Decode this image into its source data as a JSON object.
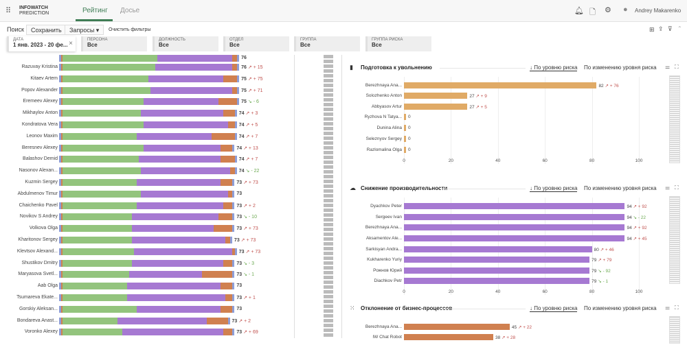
{
  "header": {
    "logo_line1": "INFOWATCH",
    "logo_line2": "PREDICTION",
    "tabs": [
      {
        "label": "Рейтинг",
        "active": true
      },
      {
        "label": "Досье",
        "active": false
      }
    ],
    "user": "Andrey Makarenko",
    "icons": [
      "apps-grid-icon",
      "bell-icon",
      "document-icon",
      "gear-icon",
      "user-avatar-icon"
    ]
  },
  "toolbar": {
    "search": "Поиск",
    "save": "Сохранить",
    "queries": "Запросы",
    "clear": "Очистить фильтры",
    "right_icons": [
      "layout-icon",
      "export-icon",
      "filter-icon",
      "collapse-icon"
    ]
  },
  "filters": [
    {
      "label": "ДАТА",
      "value": "1 янв. 2023 - 20 фе..."
    },
    {
      "label": "ПЕРСОНА",
      "value": "Все"
    },
    {
      "label": "ДОЛЖНОСТЬ",
      "value": "Все"
    },
    {
      "label": "ОТДЕЛ",
      "value": "Все"
    },
    {
      "label": "ГРУППА",
      "value": "Все"
    },
    {
      "label": "ГРУППА РИСКА",
      "value": "Все"
    }
  ],
  "colors": {
    "green": "#93c47d",
    "purple": "#a679d2",
    "orange": "#d08050",
    "tan": "#e0aa66",
    "blue": "#8e9ed8",
    "up": "#c0504d",
    "down": "#6aa84f",
    "accent": "#3f7d55"
  },
  "rating": {
    "rows": [
      {
        "name": "",
        "score": "76",
        "trend": "",
        "delta": "",
        "g": 42,
        "p": 32,
        "o": 2
      },
      {
        "name": "Razuvay Kristina",
        "score": "76",
        "trend": "up",
        "delta": "+ 15",
        "g": 41,
        "p": 33,
        "o": 2
      },
      {
        "name": "Kitaev Artem",
        "score": "75",
        "trend": "up",
        "delta": "+ 75",
        "g": 38,
        "p": 32,
        "o": 6
      },
      {
        "name": "Popov Alexander",
        "score": "75",
        "trend": "up",
        "delta": "+ 71",
        "g": 39,
        "p": 35,
        "o": 2
      },
      {
        "name": "Eremeev Alexey",
        "score": "75",
        "trend": "down",
        "delta": "- 6",
        "g": 36,
        "p": 32,
        "o": 8
      },
      {
        "name": "Mikhaylov Anton",
        "score": "74",
        "trend": "up",
        "delta": "+ 3",
        "g": 35,
        "p": 35,
        "o": 5
      },
      {
        "name": "Kondratova Vera",
        "score": "74",
        "trend": "up",
        "delta": "+ 5",
        "g": 36,
        "p": 36,
        "o": 3
      },
      {
        "name": "Leonov Maxim",
        "score": "74",
        "trend": "up",
        "delta": "+ 7",
        "g": 33,
        "p": 32,
        "o": 10
      },
      {
        "name": "Beresnev Alexey",
        "score": "74",
        "trend": "up",
        "delta": "+ 13",
        "g": 36,
        "p": 33,
        "o": 5
      },
      {
        "name": "Balashov Demid",
        "score": "74",
        "trend": "up",
        "delta": "+ 7",
        "g": 34,
        "p": 35,
        "o": 6
      },
      {
        "name": "Nasonov Alexan...",
        "score": "74",
        "trend": "down",
        "delta": "- 22",
        "g": 35,
        "p": 38,
        "o": 2
      },
      {
        "name": "Kuzmin Sergey",
        "score": "73",
        "trend": "up",
        "delta": "+ 73",
        "g": 33,
        "p": 36,
        "o": 5
      },
      {
        "name": "Abdulmenov Timur",
        "score": "73",
        "trend": "",
        "delta": "",
        "g": 35,
        "p": 37,
        "o": 2
      },
      {
        "name": "Chaichenko Pavel",
        "score": "73",
        "trend": "up",
        "delta": "+ 2",
        "g": 33,
        "p": 37,
        "o": 4
      },
      {
        "name": "Novikov S Andrey",
        "score": "73",
        "trend": "down",
        "delta": "- 10",
        "g": 31,
        "p": 37,
        "o": 6
      },
      {
        "name": "Volkova Olga",
        "score": "73",
        "trend": "up",
        "delta": "+ 73",
        "g": 31,
        "p": 35,
        "o": 8
      },
      {
        "name": "Kharitonov Sergey",
        "score": "73",
        "trend": "up",
        "delta": "+ 73",
        "g": 31,
        "p": 40,
        "o": 2
      },
      {
        "name": "Klevtsov Alexand...",
        "score": "73",
        "trend": "up",
        "delta": "+ 73",
        "g": 32,
        "p": 42,
        "o": 1
      },
      {
        "name": "Shustikov Dmitry",
        "score": "73",
        "trend": "down",
        "delta": "- 3",
        "g": 31,
        "p": 39,
        "o": 4
      },
      {
        "name": "Maryasova Svetl...",
        "score": "73",
        "trend": "down",
        "delta": "- 1",
        "g": 30,
        "p": 31,
        "o": 13
      },
      {
        "name": "Aab Olga",
        "score": "73",
        "trend": "",
        "delta": "",
        "g": 29,
        "p": 40,
        "o": 5
      },
      {
        "name": "Tsumareva Ekate...",
        "score": "73",
        "trend": "up",
        "delta": "+ 1",
        "g": 29,
        "p": 42,
        "o": 3
      },
      {
        "name": "Gorskiy Aleksan...",
        "score": "73",
        "trend": "",
        "delta": "",
        "g": 33,
        "p": 36,
        "o": 5
      },
      {
        "name": "Bondareva Anast...",
        "score": "73",
        "trend": "up",
        "delta": "+ 2",
        "g": 25,
        "p": 38,
        "o": 9
      },
      {
        "name": "Voronko Alexey",
        "score": "73",
        "trend": "up",
        "delta": "+ 69",
        "g": 27,
        "p": 43,
        "o": 4
      }
    ]
  },
  "sort": {
    "by_level": "↓ По уровню риска",
    "by_change": "По изменению уровня риска"
  },
  "chart_data": [
    {
      "type": "bar",
      "title": "Подготовка к увольнению",
      "icon": "door-exit-icon",
      "color": "#e0aa66",
      "xlim": [
        0,
        110
      ],
      "xticks": [
        "0",
        "20",
        "40",
        "60",
        "80",
        "100"
      ],
      "categories": [
        "Berezhnaya Ana...",
        "Solozhenko Anton",
        "Abbyasov Artur",
        "Ryzhova N Tatya...",
        "Dunina Alina",
        "Seleznyov Sergey",
        "Razlomalina Olga"
      ],
      "values": [
        82,
        27,
        27,
        0,
        0,
        0,
        0
      ],
      "trend": [
        "up",
        "up",
        "up",
        "",
        "",
        "",
        ""
      ],
      "delta": [
        "+ 76",
        "+ 9",
        "+ 5",
        "",
        "",
        "",
        ""
      ]
    },
    {
      "type": "bar",
      "title": "Снижение производительности",
      "icon": "speedometer-icon",
      "color": "#a679d2",
      "xlim": [
        0,
        110
      ],
      "xticks": [
        "0",
        "20",
        "40",
        "60",
        "80",
        "100"
      ],
      "categories": [
        "Dyachkov Peter",
        "Sergeev Ivan",
        "Berezhnaya Ana...",
        "Aksamentov Ale...",
        "Sarkisyan Andra...",
        "Kukharenko Yuriy",
        "Рожнов Юрий",
        "Diachkov Petr"
      ],
      "values": [
        94,
        94,
        94,
        94,
        80,
        79,
        79,
        79
      ],
      "trend": [
        "up",
        "down",
        "up",
        "up",
        "up",
        "up",
        "down",
        "down"
      ],
      "delta": [
        "+ 92",
        "- 22",
        "+ 92",
        "+ 45",
        "+ 46",
        "+ 79",
        "- 92",
        "- 1"
      ]
    },
    {
      "type": "bar",
      "title": "Отклонение от бизнес-процессов",
      "icon": "process-icon",
      "color": "#d08050",
      "xlim": [
        0,
        110
      ],
      "xticks": [],
      "categories": [
        "Berezhnaya Ana...",
        "IW Chat Robot"
      ],
      "values": [
        45,
        38
      ],
      "trend": [
        "up",
        "up"
      ],
      "delta": [
        "+ 22",
        "+ 28"
      ]
    }
  ]
}
